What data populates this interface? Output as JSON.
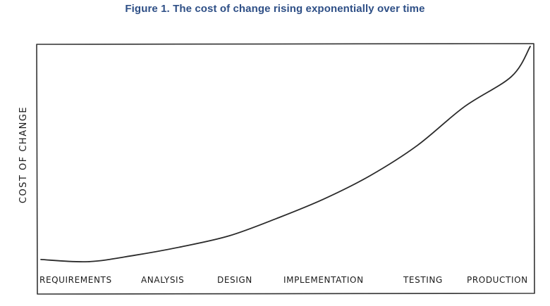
{
  "figure": {
    "title": "Figure 1. The cost of change rising exponentially over time"
  },
  "chart_data": {
    "type": "line",
    "title": "Figure 1. The cost of change rising exponentially over time",
    "xlabel": "",
    "ylabel": "COST OF CHANGE",
    "categories": [
      "REQUIREMENTS",
      "ANALYSIS",
      "DESIGN",
      "IMPLEMENTATION",
      "TESTING",
      "PRODUCTION"
    ],
    "series": [
      {
        "values_description": "relative cost, 0 = baseline, 1 = top of axis",
        "x": [
          0,
          0.5,
          1,
          1.5,
          2,
          2.5,
          3,
          3.5,
          4,
          4.5,
          5,
          5.2
        ],
        "y": [
          0.01,
          0.0,
          0.03,
          0.07,
          0.12,
          0.2,
          0.29,
          0.4,
          0.54,
          0.72,
          0.86,
          1.0
        ]
      }
    ],
    "xlim": [
      0,
      5.2
    ],
    "ylim": [
      0,
      1
    ],
    "grid": false,
    "legend": "none",
    "colors": {
      "line": "#2a2a2a",
      "frame": "#333333"
    }
  }
}
